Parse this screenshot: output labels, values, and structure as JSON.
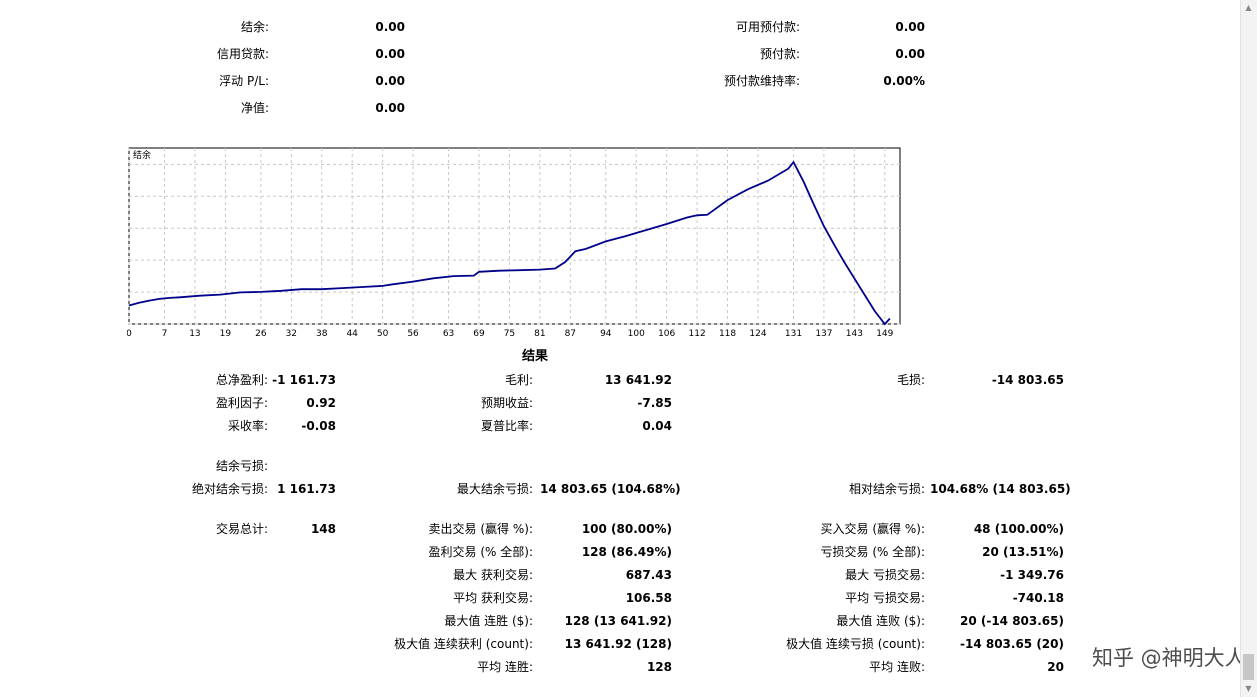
{
  "account": {
    "balance_label": "结余:",
    "balance_value": "0.00",
    "credit_label": "信用贷款:",
    "credit_value": "0.00",
    "floating_label": "浮动 P/L:",
    "floating_value": "0.00",
    "equity_label": "净值:",
    "equity_value": "0.00",
    "free_margin_label": "可用预付款:",
    "free_margin_value": "0.00",
    "margin_label": "预付款:",
    "margin_value": "0.00",
    "margin_level_label": "预付款维持率:",
    "margin_level_value": "0.00%"
  },
  "chart_data": {
    "type": "line",
    "title": "结余",
    "x_ticks": [
      0,
      7,
      13,
      19,
      26,
      32,
      38,
      44,
      50,
      56,
      63,
      69,
      75,
      81,
      87,
      94,
      100,
      106,
      112,
      118,
      124,
      131,
      137,
      143,
      149
    ],
    "y_ticks": [
      13994,
      11054,
      8114,
      5173,
      2233,
      -707
    ],
    "xlim": [
      0,
      152
    ],
    "ylim": [
      -707,
      15500
    ],
    "grid": true,
    "line_color": "#00008b",
    "series": [
      {
        "x": [
          0,
          2,
          4,
          6,
          8,
          10,
          14,
          18,
          22,
          26,
          30,
          34,
          38,
          42,
          46,
          50,
          52,
          56,
          60,
          64,
          68,
          69,
          73,
          77,
          81,
          84,
          86,
          88,
          90,
          94,
          98,
          102,
          106,
          110,
          112,
          114,
          118,
          122,
          126,
          130,
          131,
          133,
          135,
          137,
          139,
          141,
          143,
          145,
          147,
          149,
          150
        ],
        "y": [
          1000,
          1250,
          1450,
          1600,
          1700,
          1750,
          1900,
          2000,
          2200,
          2250,
          2350,
          2500,
          2500,
          2600,
          2700,
          2800,
          2950,
          3200,
          3500,
          3700,
          3750,
          4100,
          4200,
          4250,
          4300,
          4400,
          5000,
          6000,
          6200,
          6900,
          7400,
          7950,
          8500,
          9100,
          9300,
          9350,
          10700,
          11700,
          12500,
          13600,
          14200,
          12400,
          10300,
          8300,
          6600,
          5000,
          3500,
          2000,
          500,
          -720,
          -200
        ]
      }
    ]
  },
  "results": {
    "title": "结果",
    "net_profit_label": "总净盈利:",
    "net_profit_value": "-1 161.73",
    "gross_profit_label": "毛利:",
    "gross_profit_value": "13 641.92",
    "gross_loss_label": "毛损:",
    "gross_loss_value": "-14 803.65",
    "profit_factor_label": "盈利因子:",
    "profit_factor_value": "0.92",
    "expected_payoff_label": "预期收益:",
    "expected_payoff_value": "-7.85",
    "recovery_label": "采收率:",
    "recovery_value": "-0.08",
    "sharpe_label": "夏普比率:",
    "sharpe_value": "0.04",
    "drawdown_label": "结余亏损:",
    "abs_dd_label": "绝对结余亏损:",
    "abs_dd_value": "1 161.73",
    "max_dd_label": "最大结余亏损:",
    "max_dd_value": "14 803.65 (104.68%)",
    "rel_dd_label": "相对结余亏损:",
    "rel_dd_value": "104.68% (14 803.65)",
    "total_trades_label": "交易总计:",
    "total_trades_value": "148",
    "short_label": "卖出交易 (赢得 %):",
    "short_value": "100 (80.00%)",
    "long_label": "买入交易 (赢得 %):",
    "long_value": "48 (100.00%)",
    "profit_trades_label": "盈利交易 (% 全部):",
    "profit_trades_value": "128 (86.49%)",
    "loss_trades_label": "亏损交易 (% 全部):",
    "loss_trades_value": "20 (13.51%)",
    "largest_profit_label": "最大 获利交易:",
    "largest_profit_value": "687.43",
    "largest_loss_label": "最大 亏损交易:",
    "largest_loss_value": "-1 349.76",
    "avg_profit_label": "平均 获利交易:",
    "avg_profit_value": "106.58",
    "avg_loss_label": "平均 亏损交易:",
    "avg_loss_value": "-740.18",
    "max_cons_wins_label": "最大值 连胜 ($):",
    "max_cons_wins_value": "128 (13 641.92)",
    "max_cons_losses_label": "最大值 连败 ($):",
    "max_cons_losses_value": "20 (-14 803.65)",
    "max_cons_profit_label": "极大值 连续获利 (count):",
    "max_cons_profit_value": "13 641.92 (128)",
    "max_cons_loss_label": "极大值 连续亏损 (count):",
    "max_cons_loss_value": "-14 803.65 (20)",
    "avg_cons_wins_label": "平均 连胜:",
    "avg_cons_wins_value": "128",
    "avg_cons_losses_label": "平均 连败:",
    "avg_cons_losses_value": "20"
  },
  "watermark": "知乎 @神明大人",
  "scrollbar": {
    "up_icon": "scroll-up-icon",
    "down_icon": "scroll-down-icon"
  }
}
